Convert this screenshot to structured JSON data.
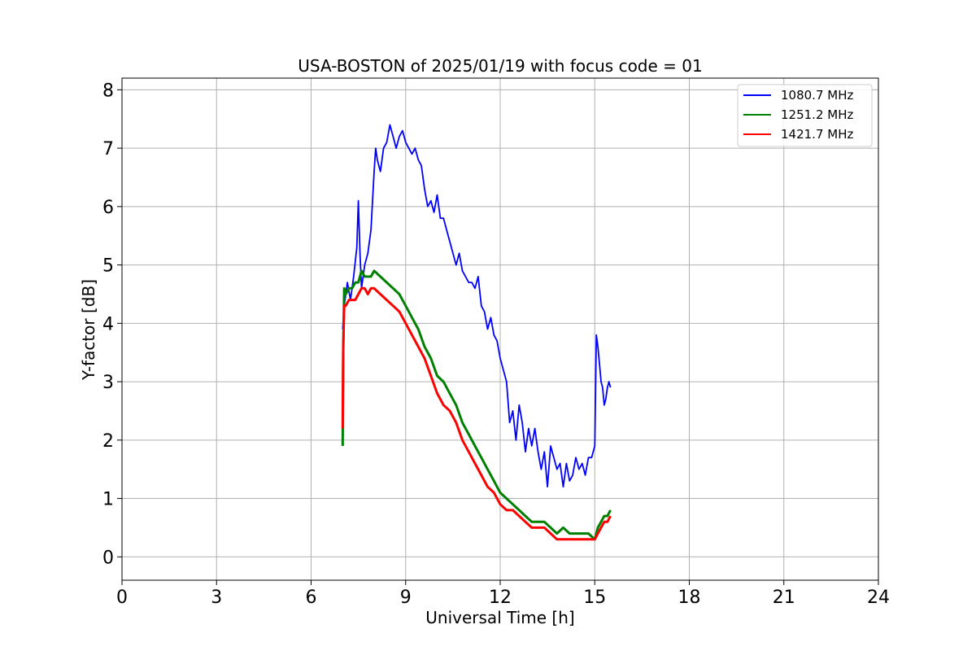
{
  "chart_data": {
    "type": "line",
    "title": "USA-BOSTON of 2025/01/19 with focus code = 01",
    "xlabel": "Universal Time [h]",
    "ylabel": "Y-factor [dB]",
    "xlim": [
      0,
      24
    ],
    "ylim": [
      -0.4,
      8.2
    ],
    "x_ticks": [
      0,
      3,
      6,
      9,
      12,
      15,
      18,
      21,
      24
    ],
    "y_ticks": [
      0,
      1,
      2,
      3,
      4,
      5,
      6,
      7,
      8
    ],
    "grid": true,
    "legend_position": "top-right",
    "series": [
      {
        "name": "1080.7 MHz",
        "color": "#0000ff",
        "x": [
          7.0,
          7.05,
          7.15,
          7.25,
          7.35,
          7.45,
          7.5,
          7.55,
          7.6,
          7.7,
          7.8,
          7.9,
          8.0,
          8.05,
          8.1,
          8.2,
          8.3,
          8.4,
          8.5,
          8.6,
          8.7,
          8.8,
          8.9,
          9.0,
          9.1,
          9.2,
          9.3,
          9.4,
          9.5,
          9.6,
          9.7,
          9.8,
          9.9,
          10.0,
          10.1,
          10.2,
          10.3,
          10.4,
          10.5,
          10.6,
          10.7,
          10.8,
          10.9,
          11.0,
          11.1,
          11.2,
          11.3,
          11.4,
          11.5,
          11.6,
          11.7,
          11.8,
          11.9,
          12.0,
          12.1,
          12.2,
          12.3,
          12.4,
          12.5,
          12.6,
          12.7,
          12.8,
          12.9,
          13.0,
          13.1,
          13.2,
          13.3,
          13.4,
          13.5,
          13.6,
          13.7,
          13.8,
          13.9,
          14.0,
          14.1,
          14.2,
          14.3,
          14.4,
          14.5,
          14.6,
          14.7,
          14.8,
          14.9,
          15.0,
          15.05,
          15.1,
          15.15,
          15.2,
          15.25,
          15.3,
          15.35,
          15.4,
          15.45,
          15.5
        ],
        "y": [
          3.9,
          4.3,
          4.7,
          4.4,
          4.8,
          5.3,
          6.1,
          5.2,
          4.6,
          5.0,
          5.2,
          5.6,
          6.6,
          7.0,
          6.8,
          6.6,
          7.0,
          7.1,
          7.4,
          7.2,
          7.0,
          7.2,
          7.3,
          7.1,
          7.0,
          6.9,
          7.0,
          6.8,
          6.7,
          6.3,
          6.0,
          6.1,
          5.9,
          6.2,
          5.8,
          5.8,
          5.6,
          5.4,
          5.2,
          5.0,
          5.2,
          4.9,
          4.8,
          4.7,
          4.7,
          4.6,
          4.8,
          4.3,
          4.2,
          3.9,
          4.1,
          3.8,
          3.7,
          3.4,
          3.2,
          3.0,
          2.3,
          2.5,
          2.0,
          2.6,
          2.3,
          1.8,
          2.2,
          1.9,
          2.2,
          1.8,
          1.5,
          1.8,
          1.2,
          1.9,
          1.7,
          1.5,
          1.6,
          1.2,
          1.6,
          1.3,
          1.4,
          1.7,
          1.5,
          1.6,
          1.4,
          1.7,
          1.7,
          1.9,
          3.8,
          3.6,
          3.3,
          3.0,
          2.9,
          2.6,
          2.7,
          2.9,
          3.0,
          2.9
        ]
      },
      {
        "name": "1251.2 MHz",
        "color": "#008000",
        "x": [
          7.0,
          7.02,
          7.05,
          7.1,
          7.2,
          7.3,
          7.4,
          7.5,
          7.6,
          7.7,
          7.8,
          7.9,
          8.0,
          8.2,
          8.4,
          8.6,
          8.8,
          9.0,
          9.2,
          9.4,
          9.6,
          9.8,
          10.0,
          10.2,
          10.4,
          10.6,
          10.8,
          11.0,
          11.2,
          11.4,
          11.6,
          11.8,
          12.0,
          12.2,
          12.4,
          12.6,
          12.8,
          13.0,
          13.2,
          13.4,
          13.6,
          13.8,
          14.0,
          14.2,
          14.4,
          14.6,
          14.8,
          15.0,
          15.1,
          15.2,
          15.3,
          15.4,
          15.5
        ],
        "y": [
          1.9,
          3.5,
          4.6,
          4.5,
          4.6,
          4.6,
          4.7,
          4.7,
          4.9,
          4.8,
          4.8,
          4.8,
          4.9,
          4.8,
          4.7,
          4.6,
          4.5,
          4.3,
          4.1,
          3.9,
          3.6,
          3.4,
          3.1,
          3.0,
          2.8,
          2.6,
          2.3,
          2.1,
          1.9,
          1.7,
          1.5,
          1.3,
          1.1,
          1.0,
          0.9,
          0.8,
          0.7,
          0.6,
          0.6,
          0.6,
          0.5,
          0.4,
          0.5,
          0.4,
          0.4,
          0.4,
          0.4,
          0.3,
          0.5,
          0.6,
          0.7,
          0.7,
          0.8
        ]
      },
      {
        "name": "1421.7 MHz",
        "color": "#ff0000",
        "x": [
          7.0,
          7.02,
          7.05,
          7.1,
          7.2,
          7.3,
          7.4,
          7.5,
          7.6,
          7.7,
          7.8,
          7.9,
          8.0,
          8.2,
          8.4,
          8.6,
          8.8,
          9.0,
          9.2,
          9.4,
          9.6,
          9.8,
          10.0,
          10.2,
          10.4,
          10.6,
          10.8,
          11.0,
          11.2,
          11.4,
          11.6,
          11.8,
          12.0,
          12.2,
          12.4,
          12.6,
          12.8,
          13.0,
          13.2,
          13.4,
          13.6,
          13.8,
          14.0,
          14.2,
          14.4,
          14.6,
          14.8,
          15.0,
          15.1,
          15.2,
          15.3,
          15.4,
          15.5
        ],
        "y": [
          2.2,
          3.6,
          4.3,
          4.3,
          4.4,
          4.4,
          4.4,
          4.5,
          4.6,
          4.6,
          4.5,
          4.6,
          4.6,
          4.5,
          4.4,
          4.3,
          4.2,
          4.0,
          3.8,
          3.6,
          3.4,
          3.1,
          2.8,
          2.6,
          2.5,
          2.3,
          2.0,
          1.8,
          1.6,
          1.4,
          1.2,
          1.1,
          0.9,
          0.8,
          0.8,
          0.7,
          0.6,
          0.5,
          0.5,
          0.5,
          0.4,
          0.3,
          0.3,
          0.3,
          0.3,
          0.3,
          0.3,
          0.3,
          0.4,
          0.5,
          0.6,
          0.6,
          0.7
        ]
      }
    ]
  }
}
